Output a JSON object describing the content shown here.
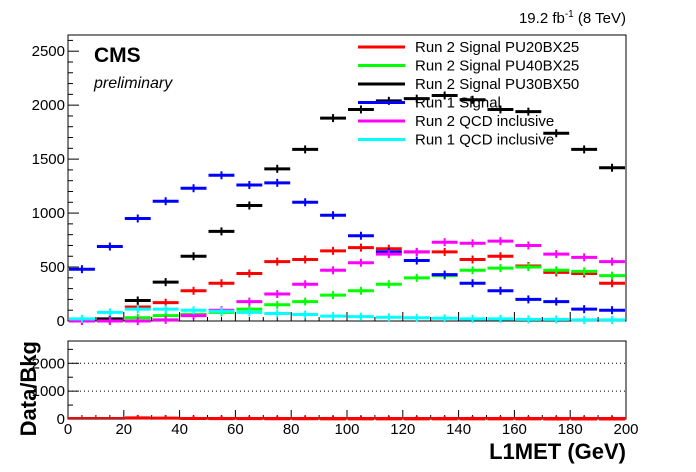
{
  "header": {
    "lumi_main": "19.2 fb",
    "lumi_sup": "-1",
    "lumi_tail": " (8 TeV)"
  },
  "labels": {
    "experiment": "CMS",
    "status": "preliminary"
  },
  "chart_data": [
    {
      "type": "line",
      "panel": "main",
      "style": "binned-markers",
      "xlabel": "L1MET (GeV)",
      "ylabel": "",
      "xlim": [
        0,
        200
      ],
      "ylim": [
        0,
        2650
      ],
      "x_bin_width": 10,
      "x": [
        5,
        15,
        25,
        35,
        45,
        55,
        65,
        75,
        85,
        95,
        105,
        115,
        125,
        135,
        145,
        155,
        165,
        175,
        185,
        195
      ],
      "x_ticks": [
        0,
        20,
        40,
        60,
        80,
        100,
        120,
        140,
        160,
        180,
        200
      ],
      "y_ticks": [
        0,
        500,
        1000,
        1500,
        2000,
        2500
      ],
      "grid": false,
      "legend_position": "top-right",
      "series": [
        {
          "name": "Run 2 Signal PU20BX25",
          "color": "#ff0000",
          "values": [
            0,
            10,
            130,
            170,
            280,
            350,
            440,
            550,
            570,
            650,
            680,
            670,
            640,
            640,
            570,
            600,
            510,
            450,
            440,
            350
          ]
        },
        {
          "name": "Run 2 Signal PU40BX25",
          "color": "#00ff00",
          "values": [
            0,
            0,
            30,
            50,
            60,
            80,
            110,
            150,
            180,
            240,
            280,
            340,
            400,
            420,
            470,
            490,
            500,
            470,
            460,
            420
          ]
        },
        {
          "name": "Run 2 Signal PU30BX50",
          "color": "#000000",
          "values": [
            0,
            20,
            190,
            360,
            600,
            830,
            1070,
            1410,
            1590,
            1880,
            1960,
            2040,
            2060,
            2090,
            2050,
            1960,
            1940,
            1740,
            1590,
            1420
          ]
        },
        {
          "name": "Run 1 Signal",
          "color": "#0000ff",
          "values": [
            480,
            690,
            950,
            1110,
            1230,
            1350,
            1260,
            1280,
            1100,
            980,
            790,
            640,
            560,
            430,
            350,
            280,
            200,
            180,
            110,
            100
          ]
        },
        {
          "name": "Run 2 QCD inclusive",
          "color": "#ff00ff",
          "values": [
            0,
            0,
            0,
            10,
            50,
            100,
            180,
            250,
            340,
            470,
            540,
            620,
            640,
            730,
            720,
            740,
            700,
            620,
            590,
            550
          ]
        },
        {
          "name": "Run 1 QCD inclusive",
          "color": "#00ffff",
          "values": [
            20,
            80,
            110,
            110,
            100,
            90,
            80,
            70,
            60,
            45,
            40,
            35,
            30,
            25,
            20,
            20,
            15,
            15,
            10,
            10
          ]
        }
      ]
    },
    {
      "type": "line",
      "panel": "ratio",
      "style": "binned-markers",
      "xlabel": "L1MET (GeV)",
      "ylabel": "Data/Bkg",
      "xlim": [
        0,
        200
      ],
      "ylim": [
        0,
        2800
      ],
      "x_bin_width": 10,
      "x": [
        25,
        35,
        45,
        55,
        65,
        75,
        85,
        95,
        105,
        115,
        125,
        135,
        145,
        155,
        165,
        175,
        185,
        195
      ],
      "x_ticks": [
        0,
        20,
        40,
        60,
        80,
        100,
        120,
        140,
        160,
        180,
        200
      ],
      "y_ticks": [
        0,
        1000,
        2000
      ],
      "gridlines_y": [
        1000,
        2000
      ],
      "series": [
        {
          "color": "#ff0000",
          "values": [
            40,
            30,
            20,
            15,
            12,
            10,
            8,
            6,
            5,
            4,
            4,
            3,
            3,
            3,
            3,
            2,
            2,
            2
          ]
        }
      ]
    }
  ]
}
